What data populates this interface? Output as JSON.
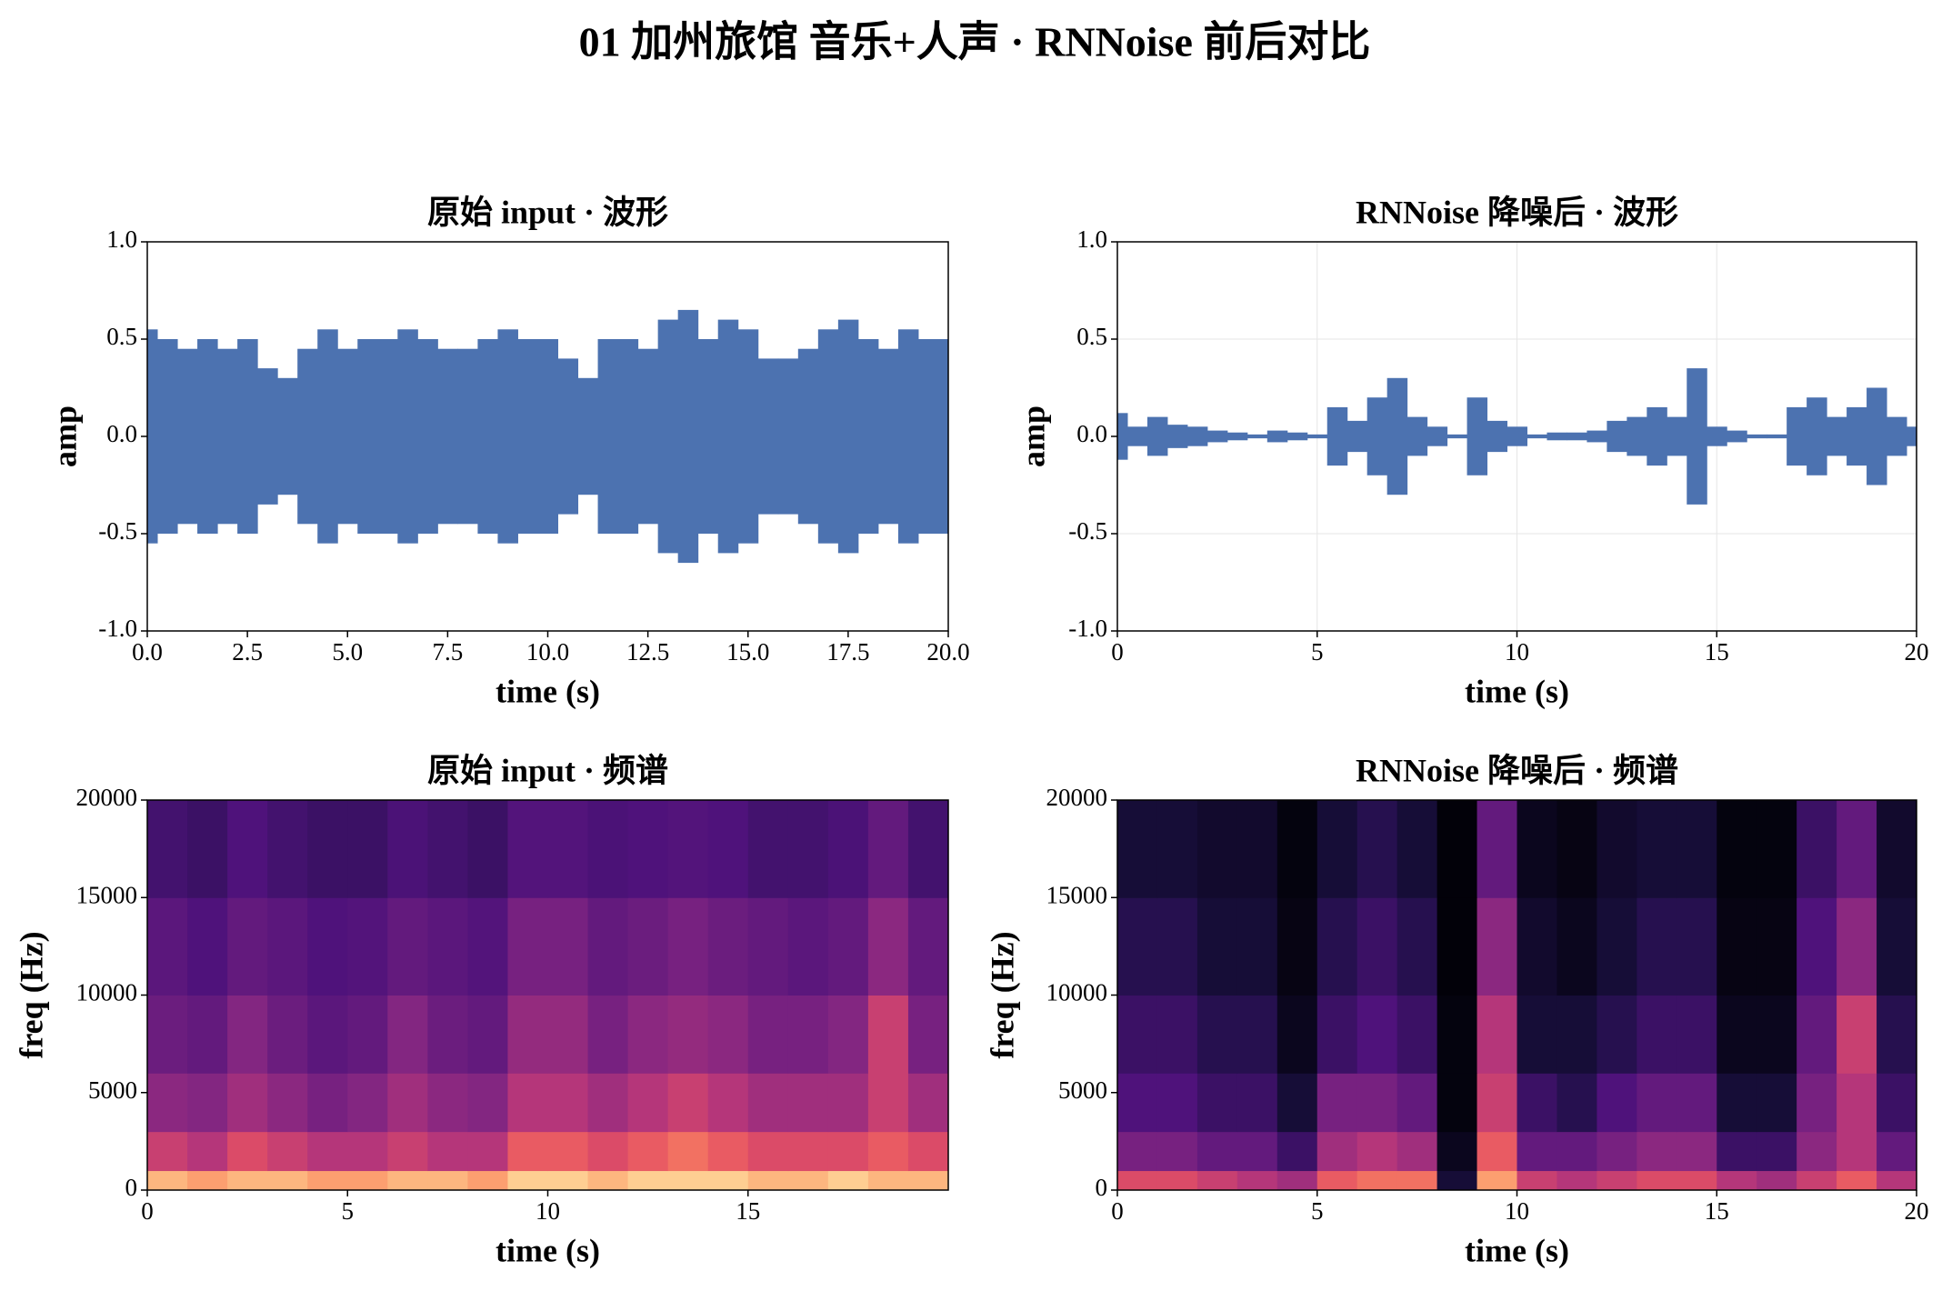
{
  "title": "01 加州旅馆 音乐+人声 · RNNoise 前后对比",
  "chart_data": [
    {
      "type": "waveform",
      "title": "原始 input · 波形",
      "xlabel": "time (s)",
      "ylabel": "amp",
      "color": "#4c72b0",
      "grid": false,
      "x": [
        0,
        0.5,
        1,
        1.5,
        2,
        2.5,
        3,
        3.5,
        4,
        4.5,
        5,
        5.5,
        6,
        6.5,
        7,
        7.5,
        8,
        8.5,
        9,
        9.5,
        10,
        10.5,
        11,
        11.5,
        12,
        12.5,
        13,
        13.5,
        14,
        14.5,
        15,
        15.5,
        16,
        16.5,
        17,
        17.5,
        18,
        18.5,
        19,
        19.5,
        20
      ],
      "values": [
        0.55,
        0.5,
        0.45,
        0.5,
        0.45,
        0.5,
        0.35,
        0.3,
        0.45,
        0.55,
        0.45,
        0.5,
        0.5,
        0.55,
        0.5,
        0.45,
        0.45,
        0.5,
        0.55,
        0.5,
        0.5,
        0.4,
        0.3,
        0.5,
        0.5,
        0.45,
        0.6,
        0.65,
        0.5,
        0.6,
        0.55,
        0.4,
        0.4,
        0.45,
        0.55,
        0.6,
        0.5,
        0.45,
        0.55,
        0.5,
        0.5
      ],
      "xlim": [
        0,
        20
      ],
      "xticks": [
        {
          "value": 0,
          "label": "0.0"
        },
        2.5,
        {
          "value": 5,
          "label": "5.0"
        },
        7.5,
        {
          "value": 10,
          "label": "10.0"
        },
        12.5,
        {
          "value": 15,
          "label": "15.0"
        },
        17.5,
        {
          "value": 20,
          "label": "20.0"
        }
      ],
      "ylim": [
        -1,
        1
      ],
      "yticks": [
        {
          "value": 1,
          "label": "1.0"
        },
        0.5,
        {
          "value": 0,
          "label": "0.0"
        },
        -0.5,
        {
          "value": -1,
          "label": "-1.0"
        }
      ]
    },
    {
      "type": "waveform",
      "title": "RNNoise 降噪后 · 波形",
      "xlabel": "time (s)",
      "ylabel": "amp",
      "color": "#4c72b0",
      "grid": true,
      "x": [
        0,
        0.5,
        1,
        1.5,
        2,
        2.5,
        3,
        3.5,
        4,
        4.5,
        5,
        5.5,
        6,
        6.5,
        7,
        7.5,
        8,
        8.5,
        9,
        9.5,
        10,
        10.5,
        11,
        11.5,
        12,
        12.5,
        13,
        13.5,
        14,
        14.5,
        15,
        15.5,
        16,
        16.5,
        17,
        17.5,
        18,
        18.5,
        19,
        19.5,
        20
      ],
      "values": [
        0.12,
        0.05,
        0.1,
        0.06,
        0.05,
        0.03,
        0.02,
        0.01,
        0.03,
        0.02,
        0.01,
        0.15,
        0.08,
        0.2,
        0.3,
        0.1,
        0.05,
        0.01,
        0.2,
        0.08,
        0.05,
        0.01,
        0.02,
        0.02,
        0.03,
        0.08,
        0.1,
        0.15,
        0.1,
        0.35,
        0.05,
        0.03,
        0.01,
        0.01,
        0.15,
        0.2,
        0.1,
        0.15,
        0.25,
        0.1,
        0.05
      ],
      "xlim": [
        0,
        20
      ],
      "xticks": [
        0,
        5,
        10,
        15,
        20
      ],
      "ylim": [
        -1,
        1
      ],
      "yticks": [
        {
          "value": 1,
          "label": "1.0"
        },
        0.5,
        {
          "value": 0,
          "label": "0.0"
        },
        -0.5,
        {
          "value": -1,
          "label": "-1.0"
        }
      ]
    },
    {
      "type": "heatmap",
      "title": "原始 input · 频谱",
      "xlabel": "time (s)",
      "ylabel": "freq (Hz)",
      "colormap": "magma",
      "xbins": [
        0,
        1,
        2,
        3,
        4,
        5,
        6,
        7,
        8,
        9,
        10,
        11,
        12,
        13,
        14,
        15,
        16,
        17,
        18,
        19,
        20
      ],
      "ybins": [
        0,
        1000,
        3000,
        6000,
        10000,
        15000,
        20000
      ],
      "values": [
        [
          0.85,
          0.8,
          0.85,
          0.85,
          0.8,
          0.8,
          0.85,
          0.85,
          0.8,
          0.9,
          0.9,
          0.85,
          0.9,
          0.9,
          0.9,
          0.85,
          0.85,
          0.9,
          0.85,
          0.85
        ],
        [
          0.55,
          0.5,
          0.6,
          0.55,
          0.5,
          0.5,
          0.55,
          0.5,
          0.5,
          0.65,
          0.65,
          0.6,
          0.65,
          0.7,
          0.65,
          0.6,
          0.6,
          0.6,
          0.65,
          0.6
        ],
        [
          0.4,
          0.38,
          0.45,
          0.4,
          0.35,
          0.38,
          0.45,
          0.4,
          0.38,
          0.5,
          0.5,
          0.45,
          0.5,
          0.55,
          0.5,
          0.45,
          0.45,
          0.45,
          0.55,
          0.45
        ],
        [
          0.32,
          0.3,
          0.38,
          0.32,
          0.28,
          0.3,
          0.38,
          0.32,
          0.3,
          0.42,
          0.42,
          0.35,
          0.4,
          0.42,
          0.4,
          0.35,
          0.35,
          0.38,
          0.55,
          0.35
        ],
        [
          0.28,
          0.25,
          0.3,
          0.28,
          0.25,
          0.26,
          0.3,
          0.28,
          0.26,
          0.35,
          0.35,
          0.3,
          0.32,
          0.35,
          0.32,
          0.3,
          0.28,
          0.3,
          0.4,
          0.3
        ],
        [
          0.22,
          0.2,
          0.25,
          0.22,
          0.2,
          0.2,
          0.24,
          0.22,
          0.2,
          0.26,
          0.26,
          0.24,
          0.25,
          0.26,
          0.25,
          0.22,
          0.22,
          0.24,
          0.3,
          0.22
        ]
      ],
      "xlim": [
        0,
        20
      ],
      "xticks": [
        0,
        5,
        10,
        15
      ],
      "ylim": [
        0,
        20000
      ],
      "yticks": [
        0,
        5000,
        10000,
        15000,
        20000
      ]
    },
    {
      "type": "heatmap",
      "title": "RNNoise 降噪后 · 频谱",
      "xlabel": "time (s)",
      "ylabel": "freq (Hz)",
      "colormap": "magma",
      "xbins": [
        0,
        1,
        2,
        3,
        4,
        5,
        6,
        7,
        8,
        9,
        10,
        11,
        12,
        13,
        14,
        15,
        16,
        17,
        18,
        19,
        20
      ],
      "ybins": [
        0,
        1000,
        3000,
        6000,
        10000,
        15000,
        20000
      ],
      "values": [
        [
          0.6,
          0.6,
          0.55,
          0.5,
          0.45,
          0.65,
          0.7,
          0.7,
          0.1,
          0.8,
          0.55,
          0.5,
          0.55,
          0.6,
          0.6,
          0.5,
          0.45,
          0.55,
          0.65,
          0.5
        ],
        [
          0.35,
          0.35,
          0.3,
          0.3,
          0.2,
          0.45,
          0.5,
          0.45,
          0.05,
          0.65,
          0.3,
          0.3,
          0.35,
          0.4,
          0.4,
          0.2,
          0.2,
          0.4,
          0.5,
          0.3
        ],
        [
          0.25,
          0.25,
          0.2,
          0.2,
          0.1,
          0.35,
          0.35,
          0.3,
          0.02,
          0.55,
          0.2,
          0.15,
          0.25,
          0.3,
          0.3,
          0.1,
          0.1,
          0.35,
          0.5,
          0.2
        ],
        [
          0.2,
          0.2,
          0.15,
          0.15,
          0.05,
          0.2,
          0.25,
          0.2,
          0.02,
          0.5,
          0.1,
          0.1,
          0.15,
          0.2,
          0.2,
          0.05,
          0.05,
          0.3,
          0.55,
          0.15
        ],
        [
          0.15,
          0.15,
          0.1,
          0.1,
          0.03,
          0.15,
          0.2,
          0.15,
          0.01,
          0.4,
          0.08,
          0.05,
          0.1,
          0.15,
          0.15,
          0.03,
          0.03,
          0.25,
          0.4,
          0.1
        ],
        [
          0.1,
          0.1,
          0.08,
          0.08,
          0.02,
          0.1,
          0.15,
          0.1,
          0.01,
          0.3,
          0.05,
          0.03,
          0.08,
          0.1,
          0.1,
          0.02,
          0.02,
          0.2,
          0.3,
          0.08
        ]
      ],
      "xlim": [
        0,
        20
      ],
      "xticks": [
        0,
        5,
        10,
        15,
        20
      ],
      "ylim": [
        0,
        20000
      ],
      "yticks": [
        0,
        5000,
        10000,
        15000,
        20000
      ]
    }
  ]
}
